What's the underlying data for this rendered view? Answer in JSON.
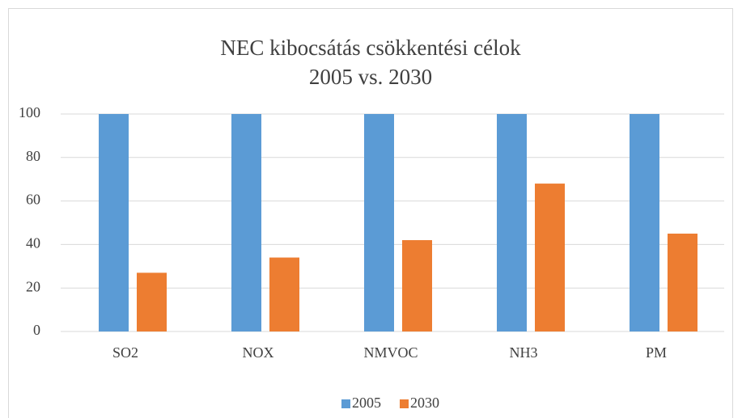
{
  "chart_data": {
    "type": "bar",
    "title": "NEC kibocsátás csökkentési célok",
    "subtitle": "2005 vs. 2030",
    "categories": [
      "SO2",
      "NOX",
      "NMVOC",
      "NH3",
      "PM"
    ],
    "series": [
      {
        "name": "2005",
        "color": "#5b9bd5",
        "values": [
          100,
          100,
          100,
          100,
          100
        ]
      },
      {
        "name": "2030",
        "color": "#ed7d31",
        "values": [
          27,
          34,
          42,
          68,
          45
        ]
      }
    ],
    "ylim": [
      0,
      100
    ],
    "yticks": [
      0,
      20,
      40,
      60,
      80,
      100
    ],
    "grid": true,
    "legend": "bottom"
  }
}
